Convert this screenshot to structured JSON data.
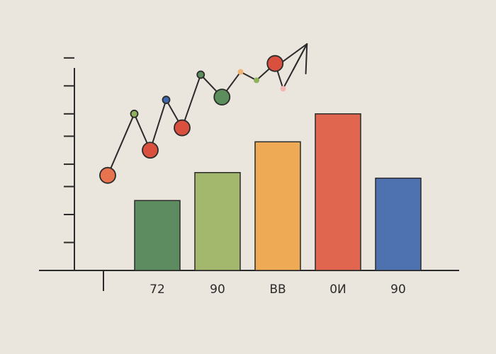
{
  "colors": {
    "background": "#ebe6dd",
    "ink": "#2b2b2b",
    "green_dark": "#5e8c61",
    "green_light": "#a3b86c",
    "orange": "#eeaa55",
    "red": "#e06650",
    "blue": "#4e72b0",
    "point_orange": "#e8734f",
    "point_red": "#d9503f",
    "point_green": "#8fb15b",
    "point_blue": "#3f67ad",
    "point_green_dark": "#5b8e5c",
    "point_peach": "#f0b373",
    "point_pink": "#f2b6b3"
  },
  "chart_data": {
    "type": "bar",
    "title": "",
    "xlabel": "",
    "ylabel": "",
    "categories": [
      "72",
      "90",
      "BB",
      "0И",
      "90"
    ],
    "ylim": [
      0,
      8
    ],
    "y_ticks": [
      1,
      2,
      3,
      3.8,
      4.8,
      5.6,
      6.6,
      7.6
    ],
    "axis_ticks_labelled": false,
    "grid": false,
    "legend": "none",
    "bars": {
      "values": [
        2.5,
        3.5,
        4.6,
        5.6,
        3.3
      ],
      "colors": [
        "#5e8c61",
        "#a3b86c",
        "#eeaa55",
        "#e06650",
        "#4e72b0"
      ]
    },
    "overlay_line": {
      "type": "line",
      "x": [
        1,
        2,
        2.6,
        3.2,
        3.8,
        4.5,
        5.3,
        6.0,
        6.6,
        7.3,
        7.6,
        8.5
      ],
      "y": [
        3.4,
        5.6,
        4.3,
        6.1,
        5.1,
        7.0,
        6.2,
        7.1,
        6.8,
        7.4,
        6.5,
        8.1
      ],
      "markers": [
        {
          "size": "medium",
          "color": "#e8734f"
        },
        {
          "size": "small",
          "color": "#8fb15b"
        },
        {
          "size": "medium",
          "color": "#d9503f"
        },
        {
          "size": "small",
          "color": "#3f67ad"
        },
        {
          "size": "medium",
          "color": "#d9503f"
        },
        {
          "size": "small",
          "color": "#5b8e5c"
        },
        {
          "size": "medium",
          "color": "#5b8e5c"
        },
        {
          "size": "tiny",
          "color": "#f0b373"
        },
        {
          "size": "tiny",
          "color": "#8fb15b"
        },
        {
          "size": "medium",
          "color": "#d9503f"
        },
        {
          "size": "tiny",
          "color": "#f2b6b3"
        },
        {
          "size": "none",
          "color": ""
        }
      ],
      "end_marker": "arrow"
    }
  }
}
